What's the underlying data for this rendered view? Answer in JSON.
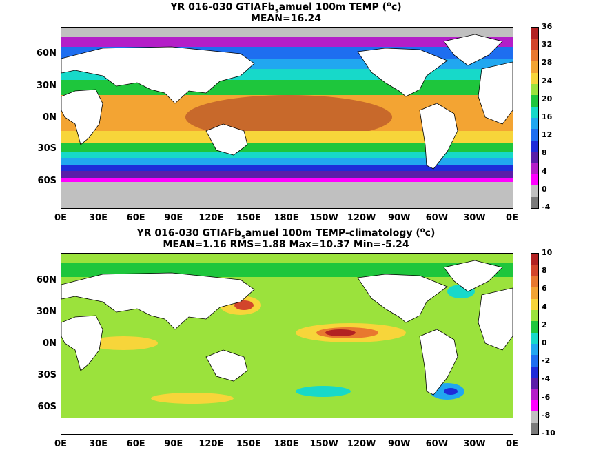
{
  "top": {
    "title_line1": "YR 016-030 GTIAFb",
    "title_sub": "s",
    "title_line1_end": "amuel 100m TEMP (",
    "title_unit_sup": "o",
    "title_unit_end": "c)",
    "title_line2": "MEAN=16.24",
    "colorbar": [
      "36",
      "32",
      "28",
      "24",
      "20",
      "16",
      "12",
      "8",
      "4",
      "0",
      "-4"
    ],
    "colors": [
      "#b22222",
      "#d2452b",
      "#e8782f",
      "#f3a433",
      "#f7d53a",
      "#9be23c",
      "#1ec63c",
      "#17d9c9",
      "#21a7f0",
      "#1e6ef0",
      "#1e2bd9",
      "#5a1ea8",
      "#b41ec8",
      "#ff00ff",
      "#c0c0c0",
      "#7a7a7a"
    ]
  },
  "bottom": {
    "title_line1": "YR 016-030 GTIAFb",
    "title_sub": "s",
    "title_line1_end": "amuel 100m TEMP-climatology (",
    "title_unit_sup": "o",
    "title_unit_end": "c)",
    "title_line2": "MEAN=1.16   RMS=1.88   Max=10.37   Min=-5.24",
    "colorbar": [
      "10",
      "8",
      "6",
      "4",
      "2",
      "0",
      "-2",
      "-4",
      "-6",
      "-8",
      "-10"
    ],
    "colors": [
      "#b22222",
      "#d2452b",
      "#e8782f",
      "#f3a433",
      "#f7d53a",
      "#9be23c",
      "#1ec63c",
      "#17d9c9",
      "#21a7f0",
      "#1e6ef0",
      "#1e2bd9",
      "#5a1ea8",
      "#b41ec8",
      "#ff00ff",
      "#c0c0c0",
      "#7a7a7a"
    ]
  },
  "axes": {
    "y_labels": [
      "60N",
      "30N",
      "0N",
      "30S",
      "60S"
    ],
    "x_labels": [
      "0E",
      "30E",
      "60E",
      "90E",
      "120E",
      "150E",
      "180E",
      "150W",
      "120W",
      "90W",
      "60W",
      "30W",
      "0E"
    ]
  }
}
